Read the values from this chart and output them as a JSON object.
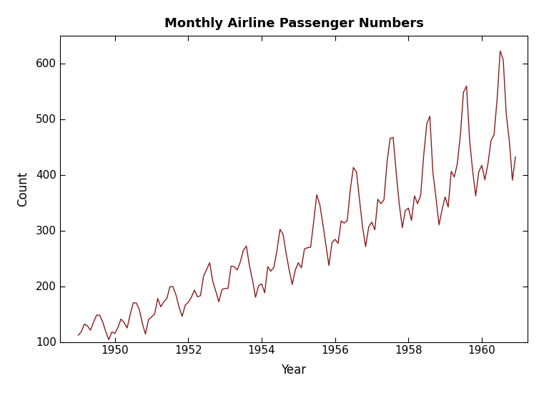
{
  "title": "Monthly Airline Passenger Numbers",
  "xlabel": "Year",
  "ylabel": "Count",
  "line_color": "#8B1A1A",
  "line_width": 1.0,
  "background_color": "#ffffff",
  "ylim": [
    100,
    650
  ],
  "xlim_start": 1948.5,
  "xlim_end": 1961.25,
  "yticks": [
    100,
    200,
    300,
    400,
    500,
    600
  ],
  "xticks": [
    1950,
    1952,
    1954,
    1956,
    1958,
    1960
  ],
  "passengers": [
    112,
    118,
    132,
    129,
    121,
    135,
    148,
    148,
    136,
    119,
    104,
    118,
    115,
    126,
    141,
    135,
    125,
    149,
    170,
    170,
    158,
    133,
    114,
    140,
    145,
    150,
    178,
    163,
    172,
    178,
    199,
    199,
    184,
    162,
    146,
    166,
    171,
    180,
    193,
    181,
    183,
    218,
    230,
    242,
    209,
    191,
    172,
    194,
    196,
    196,
    236,
    235,
    229,
    243,
    264,
    272,
    237,
    211,
    180,
    201,
    204,
    188,
    235,
    227,
    234,
    264,
    302,
    293,
    259,
    229,
    203,
    229,
    242,
    233,
    267,
    269,
    270,
    315,
    364,
    347,
    312,
    274,
    237,
    278,
    284,
    277,
    317,
    313,
    318,
    374,
    413,
    405,
    355,
    306,
    271,
    306,
    315,
    301,
    356,
    348,
    355,
    422,
    465,
    467,
    404,
    347,
    305,
    336,
    340,
    318,
    362,
    348,
    363,
    435,
    491,
    505,
    404,
    359,
    310,
    337,
    360,
    342,
    406,
    396,
    420,
    472,
    548,
    559,
    463,
    407,
    362,
    405,
    417,
    391,
    419,
    461,
    472,
    535,
    622,
    606,
    508,
    461,
    390,
    432
  ]
}
